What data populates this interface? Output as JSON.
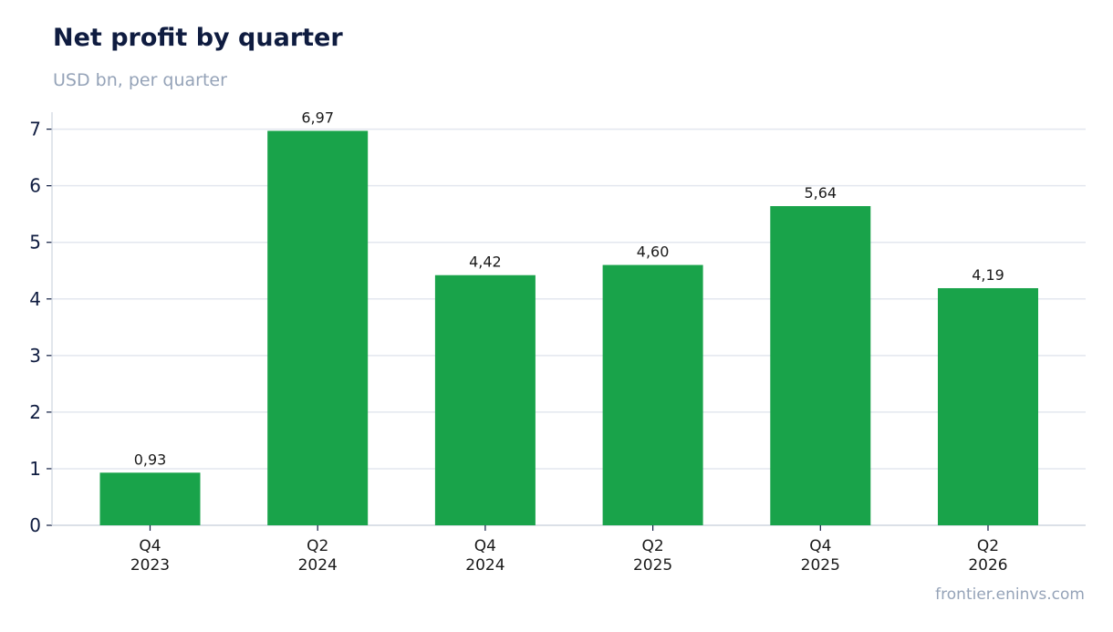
{
  "header": {
    "title": "Net profit by quarter",
    "subtitle": "USD bn, per quarter"
  },
  "footer": {
    "source": "frontier.eninvs.com"
  },
  "colors": {
    "bar": "#19a34a",
    "grid": "#e3e7ef",
    "axis": "#cfd5df",
    "text_dark": "#0f1c40",
    "label": "#1a1a1a"
  },
  "chart_data": {
    "type": "bar",
    "title": "Net profit by quarter",
    "subtitle": "USD bn, per quarter",
    "categories": [
      [
        "Q4",
        "2023"
      ],
      [
        "Q2",
        "2024"
      ],
      [
        "Q4",
        "2024"
      ],
      [
        "Q2",
        "2025"
      ],
      [
        "Q4",
        "2025"
      ],
      [
        "Q2",
        "2026"
      ]
    ],
    "values": [
      0.93,
      6.97,
      4.42,
      4.6,
      5.64,
      4.19
    ],
    "value_labels": [
      "0,93",
      "6,97",
      "4,42",
      "4,60",
      "5,64",
      "4,19"
    ],
    "ylim": [
      0,
      7.3
    ],
    "yticks": [
      0,
      1,
      2,
      3,
      4,
      5,
      6,
      7
    ],
    "grid": true,
    "legend": "none"
  }
}
